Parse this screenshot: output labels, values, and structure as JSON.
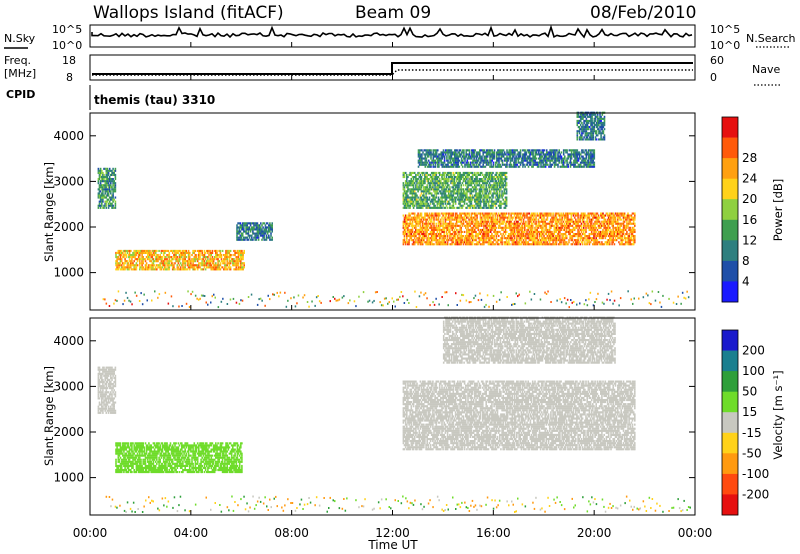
{
  "header": {
    "site": "Wallops Island (fitACF)",
    "beam": "Beam 09",
    "date": "08/Feb/2010"
  },
  "status_panels": {
    "nsky_label": "N.Sky",
    "nsky_ticks": [
      "10^5",
      "10^0"
    ],
    "nsearch_label": "N.Search",
    "freq_label_1": "Freq.",
    "freq_label_2": "[MHz]",
    "freq_ticks": [
      "18",
      "8"
    ],
    "nave_label": "Nave",
    "nave_ticks": [
      "60",
      "0"
    ],
    "cpid_label": "CPID",
    "cpid_value": "themis (tau) 3310"
  },
  "x_axis": {
    "label": "Time UT",
    "ticks": [
      "00:00",
      "04:00",
      "08:00",
      "12:00",
      "16:00",
      "20:00",
      "00:00"
    ],
    "range_hours": [
      0,
      24
    ]
  },
  "colors": {
    "power_scale": [
      "#1a1aff",
      "#1f4fa8",
      "#2e7f7f",
      "#3f9f4f",
      "#8fd040",
      "#ffd21a",
      "#ffa010",
      "#ff5a0a",
      "#e61010"
    ],
    "velocity_scale": [
      "#1a1acc",
      "#1a7f8f",
      "#2e9f3a",
      "#6fdc2a",
      "#c8c8c0",
      "#ffd21a",
      "#ff9a10",
      "#ff4a10",
      "#e61010"
    ]
  },
  "chart_data": [
    {
      "type": "heatmap",
      "title": "",
      "ylabel": "Slant Range [km]",
      "xlabel": "",
      "ylim": [
        180,
        4500
      ],
      "y_ticks": [
        "1000",
        "2000",
        "3000",
        "4000"
      ],
      "colorbar_label": "Power [dB]",
      "colorbar_ticks": [
        "4",
        "8",
        "12",
        "16",
        "20",
        "24",
        "28"
      ],
      "colorbar_range": [
        0,
        30
      ],
      "echo_regions": [
        {
          "t_start": 0.3,
          "t_end": 1.0,
          "r_min": 2400,
          "r_max": 3300,
          "value": 10
        },
        {
          "t_start": 1.0,
          "t_end": 6.1,
          "r_min": 1050,
          "r_max": 1500,
          "value": 20
        },
        {
          "t_start": 5.8,
          "t_end": 7.2,
          "r_min": 1700,
          "r_max": 2100,
          "value": 8
        },
        {
          "t_start": 12.4,
          "t_end": 21.6,
          "r_min": 1600,
          "r_max": 2300,
          "value": 22
        },
        {
          "t_start": 12.4,
          "t_end": 16.5,
          "r_min": 2400,
          "r_max": 3200,
          "value": 12
        },
        {
          "t_start": 13.0,
          "t_end": 20.0,
          "r_min": 3300,
          "r_max": 3700,
          "value": 8
        },
        {
          "t_start": 19.3,
          "t_end": 20.4,
          "r_min": 3900,
          "r_max": 4500,
          "value": 8
        }
      ]
    },
    {
      "type": "heatmap",
      "title": "",
      "ylabel": "Slant Range [km]",
      "xlabel": "Time UT",
      "ylim": [
        180,
        4500
      ],
      "y_ticks": [
        "1000",
        "2000",
        "3000",
        "4000"
      ],
      "colorbar_label": "Velocity [m s⁻¹]",
      "colorbar_ticks": [
        "200",
        "100",
        "50",
        "15",
        "-15",
        "-50",
        "-100",
        "-200"
      ],
      "colorbar_range": [
        -250,
        250
      ],
      "echo_regions": [
        {
          "t_start": 0.3,
          "t_end": 1.0,
          "r_min": 2400,
          "r_max": 3400,
          "value": 0
        },
        {
          "t_start": 1.0,
          "t_end": 6.0,
          "r_min": 1100,
          "r_max": 1750,
          "value": 40
        },
        {
          "t_start": 12.4,
          "t_end": 21.6,
          "r_min": 1600,
          "r_max": 3100,
          "value": 0
        },
        {
          "t_start": 14.0,
          "t_end": 20.8,
          "r_min": 3500,
          "r_max": 4500,
          "value": 0
        }
      ]
    }
  ]
}
